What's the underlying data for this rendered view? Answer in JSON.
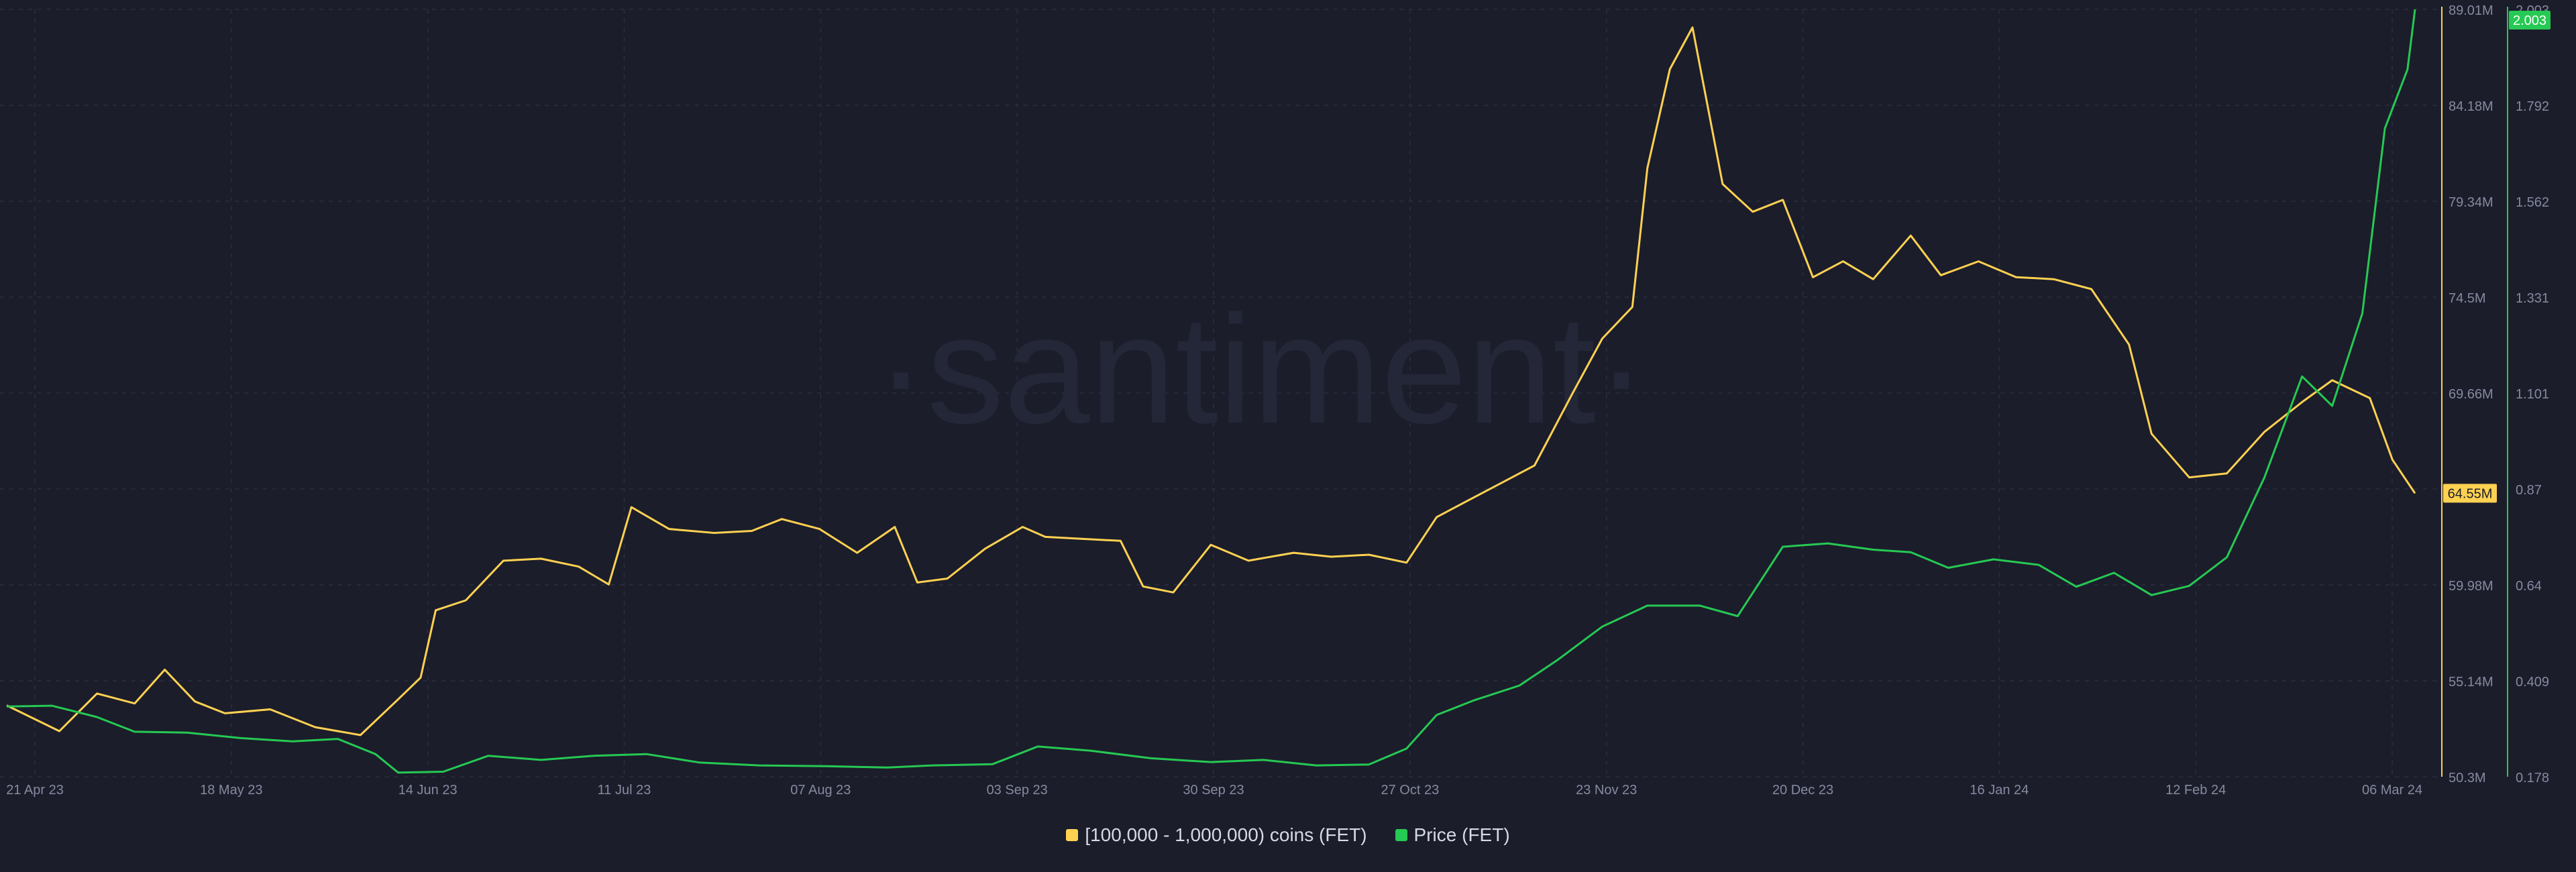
{
  "watermark": "·santiment·",
  "colors": {
    "background": "#1b1d2b",
    "holders": "#ffd151",
    "price": "#26c953",
    "grid": "#2b2e3f",
    "tick_text": "#868a9f"
  },
  "legend": {
    "holders": "[100,000  - 1,000,000) coins (FET)",
    "price": "Price (FET)"
  },
  "chart_data": {
    "type": "line",
    "x_ticks": [
      "21 Apr 23",
      "18 May 23",
      "14 Jun 23",
      "11 Jul 23",
      "07 Aug 23",
      "03 Sep 23",
      "30 Sep 23",
      "27 Oct 23",
      "23 Nov 23",
      "20 Dec 23",
      "16 Jan 24",
      "12 Feb 24",
      "06 Mar 24"
    ],
    "x_range": [
      "2023-04-21",
      "2024-03-06"
    ],
    "y_left": {
      "ticks": [
        "89.01M",
        "84.18M",
        "79.34M",
        "74.5M",
        "69.66M",
        "64.55M",
        "59.98M",
        "55.14M",
        "50.3M"
      ],
      "range": [
        50.3,
        89.01
      ],
      "last_value_label": "64.55M"
    },
    "y_right": {
      "ticks": [
        "2.003",
        "1.792",
        "1.562",
        "1.331",
        "1.101",
        "0.87",
        "0.64",
        "0.409",
        "0.178"
      ],
      "range": [
        0.178,
        2.003
      ],
      "last_value_label": "2.003"
    },
    "series": [
      {
        "name": "[100,000  - 1,000,000) coins (FET)",
        "axis": "left",
        "points": [
          [
            "2023-04-21",
            53.9
          ],
          [
            "2023-04-28",
            52.6
          ],
          [
            "2023-05-03",
            54.5
          ],
          [
            "2023-05-08",
            54.0
          ],
          [
            "2023-05-12",
            55.7
          ],
          [
            "2023-05-16",
            54.1
          ],
          [
            "2023-05-20",
            53.5
          ],
          [
            "2023-05-26",
            53.7
          ],
          [
            "2023-06-01",
            52.8
          ],
          [
            "2023-06-07",
            52.4
          ],
          [
            "2023-06-12",
            54.2
          ],
          [
            "2023-06-15",
            55.3
          ],
          [
            "2023-06-17",
            58.7
          ],
          [
            "2023-06-21",
            59.2
          ],
          [
            "2023-06-26",
            61.2
          ],
          [
            "2023-07-01",
            61.3
          ],
          [
            "2023-07-06",
            60.9
          ],
          [
            "2023-07-10",
            60.0
          ],
          [
            "2023-07-13",
            63.9
          ],
          [
            "2023-07-18",
            62.8
          ],
          [
            "2023-07-24",
            62.6
          ],
          [
            "2023-07-29",
            62.7
          ],
          [
            "2023-08-02",
            63.3
          ],
          [
            "2023-08-07",
            62.8
          ],
          [
            "2023-08-12",
            61.6
          ],
          [
            "2023-08-17",
            62.9
          ],
          [
            "2023-08-20",
            60.1
          ],
          [
            "2023-08-24",
            60.3
          ],
          [
            "2023-08-29",
            61.8
          ],
          [
            "2023-09-03",
            62.9
          ],
          [
            "2023-09-06",
            62.4
          ],
          [
            "2023-09-11",
            62.3
          ],
          [
            "2023-09-16",
            62.2
          ],
          [
            "2023-09-19",
            59.9
          ],
          [
            "2023-09-23",
            59.6
          ],
          [
            "2023-09-28",
            62.0
          ],
          [
            "2023-10-03",
            61.2
          ],
          [
            "2023-10-09",
            61.6
          ],
          [
            "2023-10-14",
            61.4
          ],
          [
            "2023-10-19",
            61.5
          ],
          [
            "2023-10-24",
            61.1
          ],
          [
            "2023-10-28",
            63.4
          ],
          [
            "2023-11-01",
            64.2
          ],
          [
            "2023-11-06",
            65.2
          ],
          [
            "2023-11-10",
            66.0
          ],
          [
            "2023-11-15",
            69.6
          ],
          [
            "2023-11-19",
            72.4
          ],
          [
            "2023-11-23",
            74.0
          ],
          [
            "2023-11-25",
            81.0
          ],
          [
            "2023-11-28",
            86.0
          ],
          [
            "2023-12-01",
            88.1
          ],
          [
            "2023-12-05",
            80.2
          ],
          [
            "2023-12-09",
            78.8
          ],
          [
            "2023-12-13",
            79.4
          ],
          [
            "2023-12-17",
            75.5
          ],
          [
            "2023-12-21",
            76.3
          ],
          [
            "2023-12-25",
            75.4
          ],
          [
            "2023-12-30",
            77.6
          ],
          [
            "2024-01-03",
            75.6
          ],
          [
            "2024-01-08",
            76.3
          ],
          [
            "2024-01-13",
            75.5
          ],
          [
            "2024-01-18",
            75.4
          ],
          [
            "2024-01-23",
            74.9
          ],
          [
            "2024-01-28",
            72.1
          ],
          [
            "2024-01-31",
            67.6
          ],
          [
            "2024-02-05",
            65.4
          ],
          [
            "2024-02-10",
            65.6
          ],
          [
            "2024-02-15",
            67.7
          ],
          [
            "2024-02-20",
            69.2
          ],
          [
            "2024-02-24",
            70.3
          ],
          [
            "2024-02-29",
            69.4
          ],
          [
            "2024-03-03",
            66.3
          ],
          [
            "2024-03-06",
            64.6
          ]
        ]
      },
      {
        "name": "Price (FET)",
        "axis": "right",
        "points": [
          [
            "2023-04-21",
            0.345
          ],
          [
            "2023-04-27",
            0.347
          ],
          [
            "2023-05-03",
            0.32
          ],
          [
            "2023-05-08",
            0.285
          ],
          [
            "2023-05-15",
            0.283
          ],
          [
            "2023-05-22",
            0.27
          ],
          [
            "2023-05-29",
            0.262
          ],
          [
            "2023-06-04",
            0.268
          ],
          [
            "2023-06-09",
            0.232
          ],
          [
            "2023-06-12",
            0.188
          ],
          [
            "2023-06-18",
            0.19
          ],
          [
            "2023-06-24",
            0.228
          ],
          [
            "2023-07-01",
            0.218
          ],
          [
            "2023-07-08",
            0.228
          ],
          [
            "2023-07-15",
            0.232
          ],
          [
            "2023-07-22",
            0.212
          ],
          [
            "2023-07-30",
            0.205
          ],
          [
            "2023-08-08",
            0.203
          ],
          [
            "2023-08-16",
            0.2
          ],
          [
            "2023-08-22",
            0.205
          ],
          [
            "2023-08-30",
            0.208
          ],
          [
            "2023-09-05",
            0.25
          ],
          [
            "2023-09-12",
            0.24
          ],
          [
            "2023-09-20",
            0.222
          ],
          [
            "2023-09-28",
            0.213
          ],
          [
            "2023-10-05",
            0.218
          ],
          [
            "2023-10-12",
            0.205
          ],
          [
            "2023-10-19",
            0.207
          ],
          [
            "2023-10-24",
            0.245
          ],
          [
            "2023-10-28",
            0.325
          ],
          [
            "2023-11-02",
            0.36
          ],
          [
            "2023-11-08",
            0.395
          ],
          [
            "2023-11-13",
            0.455
          ],
          [
            "2023-11-19",
            0.535
          ],
          [
            "2023-11-25",
            0.585
          ],
          [
            "2023-12-02",
            0.585
          ],
          [
            "2023-12-07",
            0.56
          ],
          [
            "2023-12-13",
            0.725
          ],
          [
            "2023-12-19",
            0.733
          ],
          [
            "2023-12-25",
            0.718
          ],
          [
            "2023-12-30",
            0.712
          ],
          [
            "2024-01-04",
            0.675
          ],
          [
            "2024-01-10",
            0.695
          ],
          [
            "2024-01-16",
            0.682
          ],
          [
            "2024-01-21",
            0.63
          ],
          [
            "2024-01-26",
            0.663
          ],
          [
            "2024-01-31",
            0.61
          ],
          [
            "2024-02-05",
            0.632
          ],
          [
            "2024-02-10",
            0.7
          ],
          [
            "2024-02-15",
            0.89
          ],
          [
            "2024-02-20",
            1.13
          ],
          [
            "2024-02-24",
            1.06
          ],
          [
            "2024-02-28",
            1.28
          ],
          [
            "2024-03-02",
            1.72
          ],
          [
            "2024-03-05",
            1.86
          ],
          [
            "2024-03-06",
            2.003
          ]
        ]
      }
    ]
  }
}
